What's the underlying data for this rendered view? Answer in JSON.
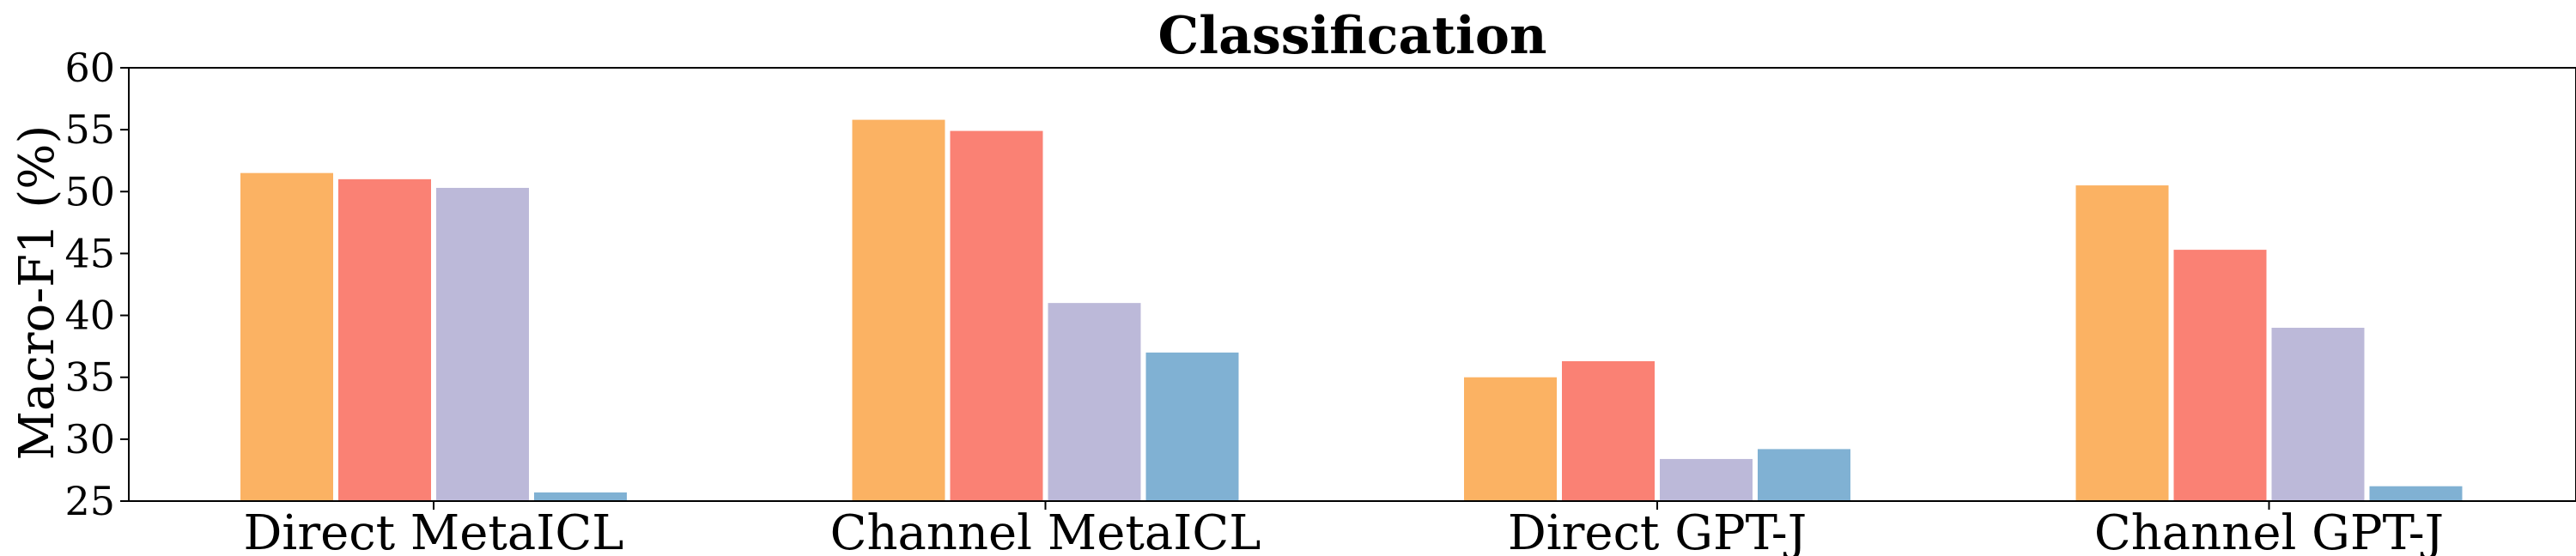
{
  "chart_data": {
    "type": "bar",
    "title": "Classification",
    "xlabel": "",
    "ylabel": "Macro-F1 (%)",
    "ylim": [
      25,
      60
    ],
    "yticks": [
      25,
      30,
      35,
      40,
      45,
      50,
      55,
      60
    ],
    "categories": [
      "Direct MetaICL",
      "Channel MetaICL",
      "Direct GPT-J",
      "Channel GPT-J"
    ],
    "series": [
      {
        "color": "#fbb263",
        "values": [
          51.5,
          55.8,
          35.0,
          50.5
        ]
      },
      {
        "color": "#fa8174",
        "values": [
          51.0,
          54.9,
          36.3,
          45.3
        ]
      },
      {
        "color": "#bcb9d9",
        "values": [
          50.3,
          41.0,
          28.4,
          39.0
        ]
      },
      {
        "color": "#80b1d3",
        "values": [
          25.7,
          37.0,
          29.2,
          26.2
        ]
      }
    ],
    "grid": false,
    "legend": "none"
  }
}
